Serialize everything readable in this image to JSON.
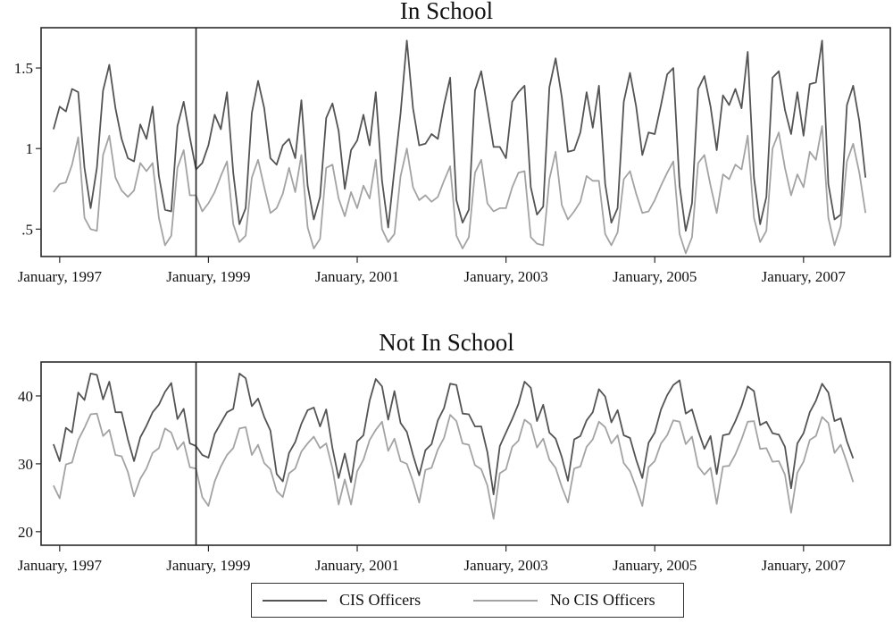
{
  "colors": {
    "cis": "#545454",
    "no_cis": "#a3a3a3",
    "frame": "#2a2a2a",
    "background": "#ffffff"
  },
  "legend": {
    "cis_label": "CIS Officers",
    "no_cis_label": "No CIS Officers",
    "position": "bottom-center"
  },
  "chart_data": [
    {
      "type": "line",
      "title": "In School",
      "xlabel": "",
      "ylabel": "",
      "x_start": "1996-12",
      "x_freq": "monthly",
      "xlim": [
        "1996-10",
        "2008-03"
      ],
      "x_ticks": [
        "1997-01",
        "1999-01",
        "2001-01",
        "2003-01",
        "2005-01",
        "2007-01"
      ],
      "x_tick_labels": [
        "January, 1997",
        "January, 1999",
        "January, 2001",
        "January, 2003",
        "January, 2005",
        "January, 2007"
      ],
      "ylim": [
        0.33,
        1.75
      ],
      "y_ticks": [
        0.5,
        1,
        1.5
      ],
      "y_tick_labels": [
        ".5",
        "1",
        "1.5"
      ],
      "vline": "1998-11",
      "grid": false,
      "series": [
        {
          "name": "CIS Officers",
          "values": [
            1.12,
            1.26,
            1.23,
            1.37,
            1.35,
            0.88,
            0.63,
            0.88,
            1.36,
            1.52,
            1.25,
            1.06,
            0.94,
            0.92,
            1.15,
            1.06,
            1.26,
            0.83,
            0.62,
            0.61,
            1.14,
            1.29,
            1.07,
            0.87,
            0.91,
            1.02,
            1.21,
            1.12,
            1.35,
            0.85,
            0.53,
            0.63,
            1.22,
            1.42,
            1.25,
            0.94,
            0.9,
            1.02,
            1.06,
            0.94,
            1.3,
            0.77,
            0.56,
            0.7,
            1.19,
            1.28,
            1.11,
            0.75,
            0.99,
            1.05,
            1.21,
            1.02,
            1.35,
            0.8,
            0.51,
            0.87,
            1.22,
            1.67,
            1.25,
            1.02,
            1.03,
            1.09,
            1.06,
            1.27,
            1.44,
            0.68,
            0.54,
            0.62,
            1.36,
            1.48,
            1.25,
            1.01,
            1.01,
            0.94,
            1.29,
            1.35,
            1.39,
            0.76,
            0.59,
            0.64,
            1.38,
            1.56,
            1.32,
            0.98,
            0.99,
            1.1,
            1.35,
            1.13,
            1.39,
            0.78,
            0.54,
            0.63,
            1.29,
            1.47,
            1.26,
            0.96,
            1.1,
            1.09,
            1.27,
            1.46,
            1.5,
            0.77,
            0.49,
            0.66,
            1.37,
            1.45,
            1.26,
            0.99,
            1.33,
            1.27,
            1.37,
            1.25,
            1.6,
            0.82,
            0.53,
            0.7,
            1.44,
            1.48,
            1.24,
            1.09,
            1.35,
            1.08,
            1.4,
            1.41,
            1.67,
            0.78,
            0.56,
            0.59,
            1.27,
            1.39,
            1.17,
            0.82
          ]
        },
        {
          "name": "No CIS Officers",
          "values": [
            0.73,
            0.78,
            0.79,
            0.9,
            1.07,
            0.57,
            0.5,
            0.49,
            0.96,
            1.08,
            0.82,
            0.74,
            0.7,
            0.74,
            0.91,
            0.86,
            0.91,
            0.57,
            0.4,
            0.46,
            0.88,
            0.99,
            0.71,
            0.71,
            0.61,
            0.66,
            0.73,
            0.83,
            0.92,
            0.53,
            0.42,
            0.46,
            0.82,
            0.93,
            0.76,
            0.6,
            0.63,
            0.72,
            0.88,
            0.73,
            0.96,
            0.51,
            0.38,
            0.44,
            0.88,
            0.9,
            0.69,
            0.58,
            0.73,
            0.63,
            0.77,
            0.69,
            0.93,
            0.5,
            0.42,
            0.47,
            0.83,
            1.0,
            0.76,
            0.68,
            0.71,
            0.67,
            0.7,
            0.8,
            0.89,
            0.46,
            0.38,
            0.45,
            0.85,
            0.93,
            0.66,
            0.61,
            0.63,
            0.63,
            0.76,
            0.85,
            0.86,
            0.45,
            0.41,
            0.4,
            0.81,
            0.98,
            0.65,
            0.56,
            0.61,
            0.67,
            0.83,
            0.8,
            0.8,
            0.47,
            0.4,
            0.48,
            0.81,
            0.86,
            0.72,
            0.6,
            0.61,
            0.68,
            0.77,
            0.85,
            0.92,
            0.47,
            0.35,
            0.45,
            0.91,
            0.96,
            0.77,
            0.6,
            0.84,
            0.81,
            0.9,
            0.87,
            1.08,
            0.57,
            0.42,
            0.49,
            1.0,
            1.1,
            0.88,
            0.71,
            0.84,
            0.76,
            0.98,
            0.93,
            1.14,
            0.57,
            0.4,
            0.52,
            0.92,
            1.03,
            0.85,
            0.6
          ]
        }
      ]
    },
    {
      "type": "line",
      "title": "Not In School",
      "xlabel": "",
      "ylabel": "",
      "x_start": "1996-12",
      "x_freq": "monthly",
      "xlim": [
        "1996-10",
        "2008-03"
      ],
      "x_ticks": [
        "1997-01",
        "1999-01",
        "2001-01",
        "2003-01",
        "2005-01",
        "2007-01"
      ],
      "x_tick_labels": [
        "January, 1997",
        "January, 1999",
        "January, 2001",
        "January, 2003",
        "January, 2005",
        "January, 2007"
      ],
      "ylim": [
        18,
        45
      ],
      "y_ticks": [
        20,
        30,
        40
      ],
      "y_tick_labels": [
        "20",
        "30",
        "40"
      ],
      "vline": "1998-11",
      "grid": false,
      "series": [
        {
          "name": "CIS Officers",
          "values": [
            32.9,
            30.4,
            35.3,
            34.6,
            40.5,
            39.4,
            43.3,
            43.1,
            39.5,
            42.1,
            37.6,
            37.6,
            33.6,
            30.4,
            33.9,
            35.6,
            37.6,
            38.7,
            40.6,
            41.9,
            36.6,
            38.1,
            33.0,
            32.6,
            31.3,
            30.9,
            34.4,
            36.0,
            37.6,
            38.1,
            43.3,
            42.6,
            38.5,
            39.6,
            36.9,
            34.9,
            28.5,
            27.4,
            31.6,
            33.2,
            35.9,
            37.9,
            38.3,
            35.5,
            38.0,
            32.3,
            27.9,
            31.5,
            27.3,
            33.3,
            34.2,
            39.3,
            42.5,
            41.4,
            36.5,
            40.7,
            36.0,
            34.7,
            31.3,
            28.3,
            32.0,
            32.9,
            36.4,
            38.2,
            41.8,
            41.6,
            37.4,
            37.3,
            35.5,
            35.5,
            31.7,
            25.5,
            32.6,
            34.6,
            36.6,
            38.8,
            42.1,
            41.2,
            36.3,
            38.7,
            34.6,
            33.7,
            31.0,
            27.5,
            33.6,
            34.1,
            36.4,
            37.6,
            41.0,
            39.9,
            36.1,
            37.9,
            34.2,
            33.8,
            30.6,
            27.9,
            33.1,
            34.6,
            38.0,
            40.1,
            41.6,
            42.3,
            37.4,
            38.0,
            34.9,
            32.2,
            34.1,
            28.5,
            34.2,
            34.4,
            36.3,
            38.5,
            41.4,
            40.7,
            35.7,
            36.2,
            34.5,
            34.3,
            32.5,
            26.4,
            33.0,
            34.5,
            37.6,
            39.3,
            41.8,
            40.5,
            36.3,
            36.7,
            33.3,
            30.8
          ]
        },
        {
          "name": "No CIS Officers",
          "values": [
            26.8,
            24.9,
            29.9,
            30.2,
            33.5,
            35.3,
            37.3,
            37.4,
            34.1,
            35.0,
            31.3,
            31.1,
            28.8,
            25.2,
            27.8,
            29.3,
            31.6,
            32.3,
            35.2,
            34.6,
            32.1,
            33.2,
            29.5,
            29.3,
            25.1,
            23.8,
            27.4,
            29.6,
            31.3,
            32.3,
            35.2,
            35.4,
            31.3,
            32.8,
            30.1,
            29.2,
            26.0,
            25.1,
            28.6,
            29.3,
            31.8,
            33.0,
            34.0,
            32.3,
            33.0,
            29.3,
            24.0,
            27.7,
            24.0,
            28.9,
            30.6,
            33.5,
            35.0,
            36.2,
            31.9,
            33.7,
            30.4,
            30.0,
            27.4,
            24.3,
            29.1,
            29.4,
            32.1,
            33.8,
            37.2,
            36.3,
            33.0,
            32.8,
            29.8,
            29.2,
            26.8,
            21.9,
            28.6,
            29.2,
            32.5,
            33.4,
            36.5,
            35.8,
            32.4,
            33.7,
            30.6,
            29.4,
            26.6,
            24.3,
            29.3,
            29.6,
            32.5,
            33.6,
            36.2,
            35.4,
            33.0,
            34.2,
            30.1,
            28.9,
            26.5,
            23.8,
            29.5,
            30.4,
            33.0,
            34.2,
            36.4,
            36.2,
            32.9,
            34.0,
            29.6,
            28.4,
            29.4,
            24.1,
            29.6,
            29.7,
            31.4,
            33.6,
            36.2,
            36.3,
            32.2,
            32.3,
            30.3,
            30.4,
            28.4,
            22.8,
            28.7,
            30.3,
            33.5,
            34.1,
            36.9,
            36.0,
            31.6,
            32.8,
            30.2,
            27.3
          ]
        }
      ]
    }
  ]
}
